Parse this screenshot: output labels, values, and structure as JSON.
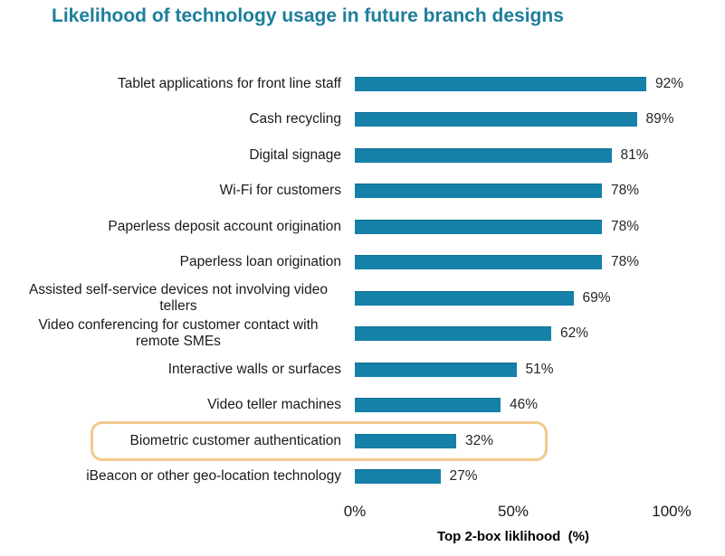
{
  "chart_data": {
    "type": "bar",
    "orientation": "horizontal",
    "title": "Likelihood of technology usage in future branch designs",
    "categories": [
      "Tablet applications for front line staff",
      "Cash recycling",
      "Digital signage",
      "Wi-Fi for customers",
      "Paperless deposit account origination",
      "Paperless loan origination",
      "Assisted self-service devices not involving video tellers",
      "Video conferencing for customer contact with remote SMEs",
      "Interactive walls or surfaces",
      "Video teller machines",
      "Biometric customer authentication",
      "iBeacon or other geo-location technology"
    ],
    "values": [
      92,
      89,
      81,
      78,
      78,
      78,
      69,
      62,
      51,
      46,
      32,
      27
    ],
    "value_labels": [
      "92%",
      "89%",
      "81%",
      "78%",
      "78%",
      "78%",
      "69%",
      "62%",
      "51%",
      "46%",
      "32%",
      "27%"
    ],
    "xlabel": "Top 2-box liklihood  (%)",
    "xlim": [
      0,
      100
    ],
    "xticks": [
      {
        "label": "0%",
        "value": 0
      },
      {
        "label": "50%",
        "value": 50
      },
      {
        "label": "100%",
        "value": 100
      }
    ],
    "grid": false,
    "legend": false,
    "highlight": {
      "category": "Biometric customer authentication",
      "index": 10
    }
  },
  "colors": {
    "bar": "#1581A9",
    "bar_edge": "#0E6F93",
    "title": "#1C7E9B",
    "text": "#1A1A1A",
    "highlight_border": "#F2C98D"
  }
}
